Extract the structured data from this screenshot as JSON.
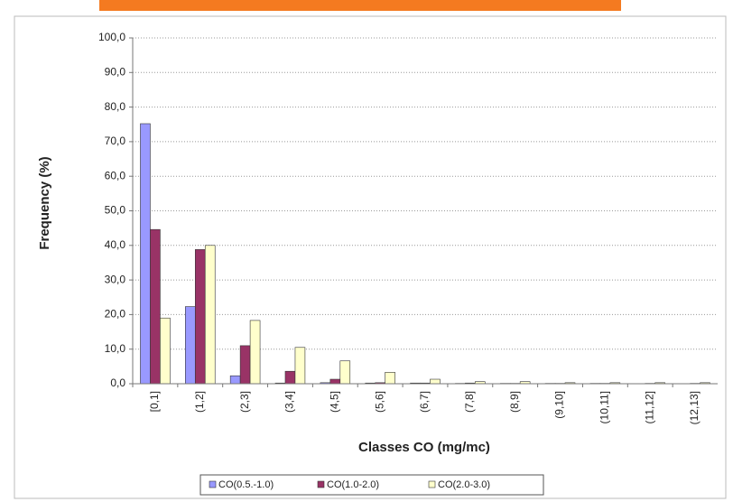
{
  "chart_data": {
    "type": "bar",
    "x_label": "Classes CO (mg/mc)",
    "y_label": "Frequency (%)",
    "categories": [
      "[0,1]",
      "(1,2]",
      "(2,3]",
      "(3,4]",
      "(4,5]",
      "(5,6]",
      "(6,7]",
      "(7,8]",
      "(8,9]",
      "(9,10]",
      "(10,11]",
      "(11,12]",
      "(12,13]"
    ],
    "series": [
      {
        "name": "CO(0.5.-1.0)",
        "color": "#9999ff",
        "values": [
          75.2,
          22.3,
          2.3,
          0.2,
          0.3,
          0.2,
          0.2,
          0.1,
          0.1,
          0.1,
          0.1,
          0,
          0
        ]
      },
      {
        "name": "CO(1.0-2.0)",
        "color": "#993366",
        "values": [
          44.6,
          38.8,
          11.0,
          3.6,
          1.3,
          0.3,
          0.2,
          0.2,
          0.1,
          0.1,
          0.1,
          0.1,
          0.1
        ]
      },
      {
        "name": "CO(2.0-3.0)",
        "color": "#ffffcc",
        "values": [
          19.0,
          40.0,
          18.3,
          10.5,
          6.6,
          3.3,
          1.3,
          0.6,
          0.6,
          0.3,
          0.3,
          0.3,
          0.3
        ]
      }
    ],
    "ylim": [
      0,
      100
    ],
    "yticks": [
      {
        "value": 0,
        "label": "0,0"
      },
      {
        "value": 10,
        "label": "10,0"
      },
      {
        "value": 20,
        "label": "20,0"
      },
      {
        "value": 30,
        "label": "30,0"
      },
      {
        "value": 40,
        "label": "40,0"
      },
      {
        "value": 50,
        "label": "50,0"
      },
      {
        "value": 60,
        "label": "60,0"
      },
      {
        "value": 70,
        "label": "70,0"
      },
      {
        "value": 80,
        "label": "80,0"
      },
      {
        "value": 90,
        "label": "90,0"
      },
      {
        "value": 100,
        "label": "100,0"
      }
    ],
    "grid": true,
    "legend": "bottom"
  }
}
